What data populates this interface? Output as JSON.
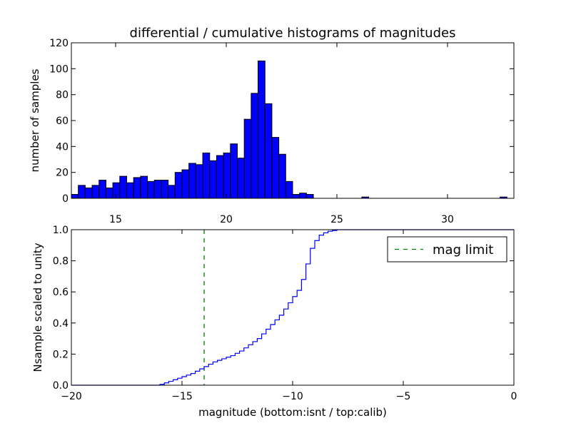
{
  "chart_data": [
    {
      "type": "bar",
      "title": "differential / cumulative histograms of magnitudes",
      "xlabel": "",
      "ylabel": "number of samples",
      "xlim": [
        13,
        33
      ],
      "ylim": [
        0,
        120
      ],
      "xticks": [
        15,
        20,
        25,
        30
      ],
      "xtick_labels": [
        "15",
        "20",
        "25",
        "30"
      ],
      "yticks": [
        0,
        20,
        40,
        60,
        80,
        100,
        120
      ],
      "ytick_labels": [
        "0",
        "20",
        "40",
        "60",
        "80",
        "100",
        "120"
      ],
      "bin_start": 13,
      "bin_width": 0.3125,
      "values": [
        3,
        10,
        8,
        10,
        14,
        8,
        12,
        17,
        12,
        16,
        17,
        13,
        14,
        14,
        10,
        20,
        22,
        27,
        26,
        35,
        29,
        33,
        35,
        42,
        31,
        61,
        81,
        106,
        73,
        47,
        34,
        13,
        3,
        4,
        3,
        0,
        0,
        0,
        0,
        0,
        0,
        0,
        1,
        0,
        0,
        0,
        0,
        0,
        0,
        0,
        0,
        0,
        0,
        0,
        0,
        0,
        0,
        0,
        0,
        0,
        0,
        0,
        1,
        0
      ],
      "bar_color": "#0000ff",
      "edge_color": "#000000"
    },
    {
      "type": "line",
      "drawstyle": "steps",
      "xlabel": "magnitude (bottom:isnt / top:calib)",
      "ylabel": "Nsample scaled to unity",
      "xlim": [
        -20,
        0
      ],
      "ylim": [
        0,
        1
      ],
      "xticks": [
        -20,
        -15,
        -10,
        -5,
        0
      ],
      "xtick_labels": [
        "−20",
        "−15",
        "−10",
        "−5",
        "0"
      ],
      "yticks": [
        0,
        0.2,
        0.4,
        0.6,
        0.8,
        1.0
      ],
      "ytick_labels": [
        "0.0",
        "0.2",
        "0.4",
        "0.6",
        "0.8",
        "1.0"
      ],
      "series": [
        {
          "name": "cumulative",
          "color": "#0000ff",
          "x": [
            -20,
            -16.0,
            -15.8,
            -15.6,
            -15.4,
            -15.2,
            -15.0,
            -14.8,
            -14.6,
            -14.4,
            -14.2,
            -14.0,
            -13.8,
            -13.6,
            -13.4,
            -13.2,
            -13.0,
            -12.8,
            -12.6,
            -12.4,
            -12.2,
            -12.0,
            -11.8,
            -11.6,
            -11.4,
            -11.2,
            -11.0,
            -10.8,
            -10.6,
            -10.4,
            -10.2,
            -10.0,
            -9.8,
            -9.6,
            -9.4,
            -9.2,
            -9.0,
            -8.8,
            -8.6,
            -8.4,
            -8.2,
            -8.0,
            -7.8,
            -7.6,
            -7.4,
            0
          ],
          "y": [
            0,
            0.005,
            0.015,
            0.025,
            0.035,
            0.045,
            0.055,
            0.065,
            0.075,
            0.09,
            0.105,
            0.12,
            0.135,
            0.15,
            0.16,
            0.17,
            0.18,
            0.19,
            0.205,
            0.22,
            0.24,
            0.26,
            0.28,
            0.3,
            0.33,
            0.36,
            0.39,
            0.42,
            0.45,
            0.49,
            0.53,
            0.57,
            0.61,
            0.68,
            0.78,
            0.88,
            0.93,
            0.965,
            0.98,
            0.99,
            0.995,
            1.0,
            1.0,
            1.0,
            1.0,
            1.0
          ]
        }
      ],
      "vline": {
        "x": -14,
        "color": "#008000",
        "style": "dashed",
        "label": "mag limit"
      },
      "legend": {
        "position": "top-right",
        "entries": [
          "mag limit"
        ]
      }
    }
  ]
}
